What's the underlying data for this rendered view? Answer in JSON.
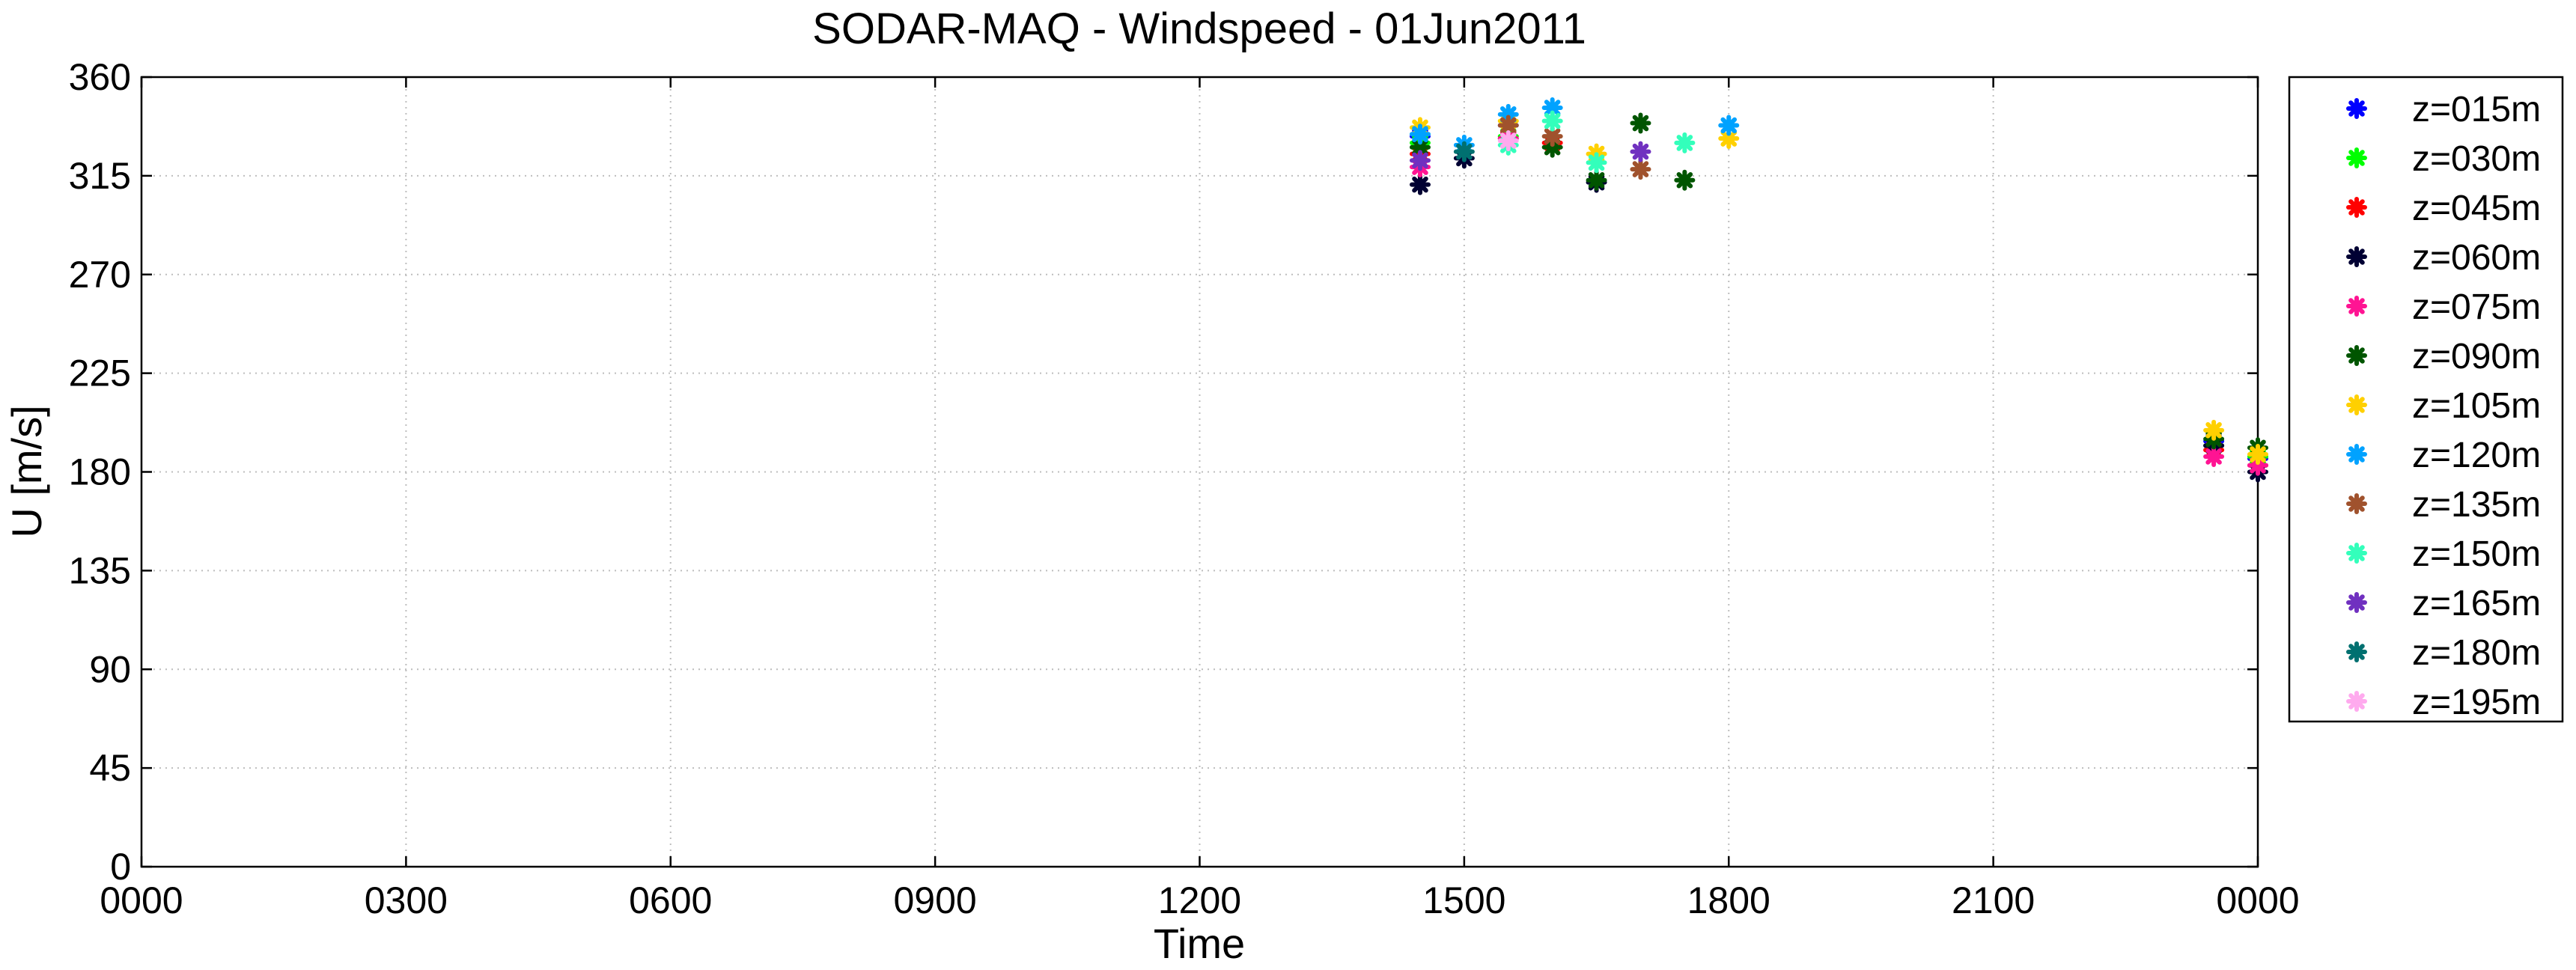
{
  "chart_data": {
    "type": "scatter",
    "title": "SODAR-MAQ - Windspeed - 01Jun2011",
    "xlabel": "Time",
    "ylabel": "U [m/s]",
    "xlim": [
      0,
      24
    ],
    "ylim": [
      0,
      360
    ],
    "x_ticks": [
      0,
      3,
      6,
      9,
      12,
      15,
      18,
      21,
      24
    ],
    "x_tick_labels": [
      "0000",
      "0300",
      "0600",
      "0900",
      "1200",
      "1500",
      "1800",
      "2100",
      "0000"
    ],
    "y_ticks": [
      0,
      45,
      90,
      135,
      180,
      225,
      270,
      315,
      360
    ],
    "y_tick_labels": [
      "0",
      "45",
      "90",
      "135",
      "180",
      "225",
      "270",
      "315",
      "360"
    ],
    "grid": true,
    "marker": "asterisk",
    "legend_position": "outside-right",
    "series": [
      {
        "name": "z=015m",
        "color": "#0000ff",
        "x": [
          14.5,
          15.5,
          23.5,
          24.0
        ],
        "y": [
          333,
          338,
          194,
          186
        ]
      },
      {
        "name": "z=030m",
        "color": "#00ff00",
        "x": [
          14.5,
          15.5,
          23.5,
          24.0
        ],
        "y": [
          330,
          333,
          192,
          187
        ]
      },
      {
        "name": "z=045m",
        "color": "#ff0000",
        "x": [
          14.5,
          15.5,
          16.0,
          23.5,
          24.0
        ],
        "y": [
          325,
          332,
          330,
          190,
          183
        ]
      },
      {
        "name": "z=060m",
        "color": "#000033",
        "x": [
          14.5,
          15.0,
          16.5,
          23.5,
          24.0
        ],
        "y": [
          311,
          323,
          312,
          192,
          180
        ]
      },
      {
        "name": "z=075m",
        "color": "#ff1493",
        "x": [
          14.5,
          15.5,
          23.5,
          24.0
        ],
        "y": [
          319,
          332,
          187,
          183
        ]
      },
      {
        "name": "z=090m",
        "color": "#005500",
        "x": [
          14.5,
          16.0,
          16.5,
          17.0,
          17.5,
          23.5,
          24.0
        ],
        "y": [
          328,
          328,
          313,
          339,
          313,
          195,
          191
        ]
      },
      {
        "name": "z=105m",
        "color": "#ffd000",
        "x": [
          14.5,
          15.5,
          16.5,
          18.0,
          23.5,
          24.0
        ],
        "y": [
          337,
          340,
          325,
          332,
          199,
          188
        ]
      },
      {
        "name": "z=120m",
        "color": "#00a2ff",
        "x": [
          14.5,
          15.0,
          15.5,
          16.0,
          18.0
        ],
        "y": [
          334,
          329,
          343,
          346,
          338
        ]
      },
      {
        "name": "z=135m",
        "color": "#a0522d",
        "x": [
          15.5,
          16.0,
          17.0
        ],
        "y": [
          338,
          333,
          318
        ]
      },
      {
        "name": "z=150m",
        "color": "#33ffbb",
        "x": [
          15.5,
          16.0,
          16.5,
          17.5
        ],
        "y": [
          329,
          340,
          321,
          330
        ]
      },
      {
        "name": "z=165m",
        "color": "#7030c0",
        "x": [
          14.5,
          17.0
        ],
        "y": [
          322,
          326
        ]
      },
      {
        "name": "z=180m",
        "color": "#007070",
        "x": [
          15.0
        ],
        "y": [
          326
        ]
      },
      {
        "name": "z=195m",
        "color": "#ffaaee",
        "x": [
          15.5
        ],
        "y": [
          331
        ]
      }
    ]
  }
}
